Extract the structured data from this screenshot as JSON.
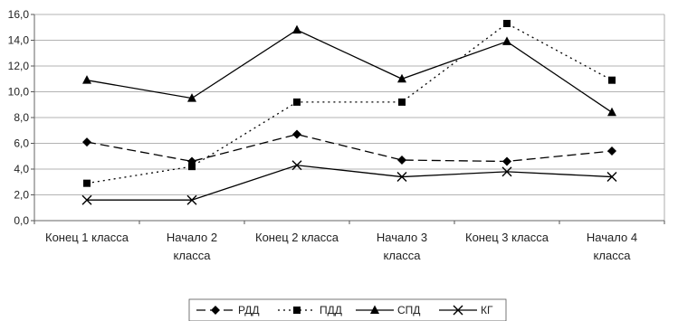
{
  "chart_data": {
    "type": "line",
    "title": "",
    "xlabel": "",
    "ylabel": "",
    "categories": [
      [
        "Конец 1 класса"
      ],
      [
        "Начало 2",
        "класса"
      ],
      [
        "Конец 2 класса"
      ],
      [
        "Начало 3",
        "класса"
      ],
      [
        "Конец 3 класса"
      ],
      [
        "Начало 4",
        "класса"
      ]
    ],
    "ylim": [
      0,
      16
    ],
    "y_ticks": [
      "0,0",
      "2,0",
      "4,0",
      "6,0",
      "8,0",
      "10,0",
      "12,0",
      "14,0",
      "16,0"
    ],
    "grid": true,
    "legend_position": "bottom",
    "series": [
      {
        "name": "РДД",
        "values": [
          6.1,
          4.6,
          6.7,
          4.7,
          4.6,
          5.4
        ],
        "marker": "diamond",
        "dash": "10,5",
        "color": "#000000"
      },
      {
        "name": "ПДД",
        "values": [
          2.9,
          4.2,
          9.2,
          9.2,
          15.3,
          10.9
        ],
        "marker": "square",
        "dash": "2,4",
        "color": "#000000"
      },
      {
        "name": "СПД",
        "values": [
          10.9,
          9.5,
          14.8,
          11.0,
          13.9,
          8.4
        ],
        "marker": "triangle",
        "dash": "",
        "color": "#000000"
      },
      {
        "name": "КГ",
        "values": [
          1.6,
          1.6,
          4.3,
          3.4,
          3.8,
          3.4
        ],
        "marker": "cross",
        "dash": "",
        "color": "#000000"
      }
    ]
  }
}
